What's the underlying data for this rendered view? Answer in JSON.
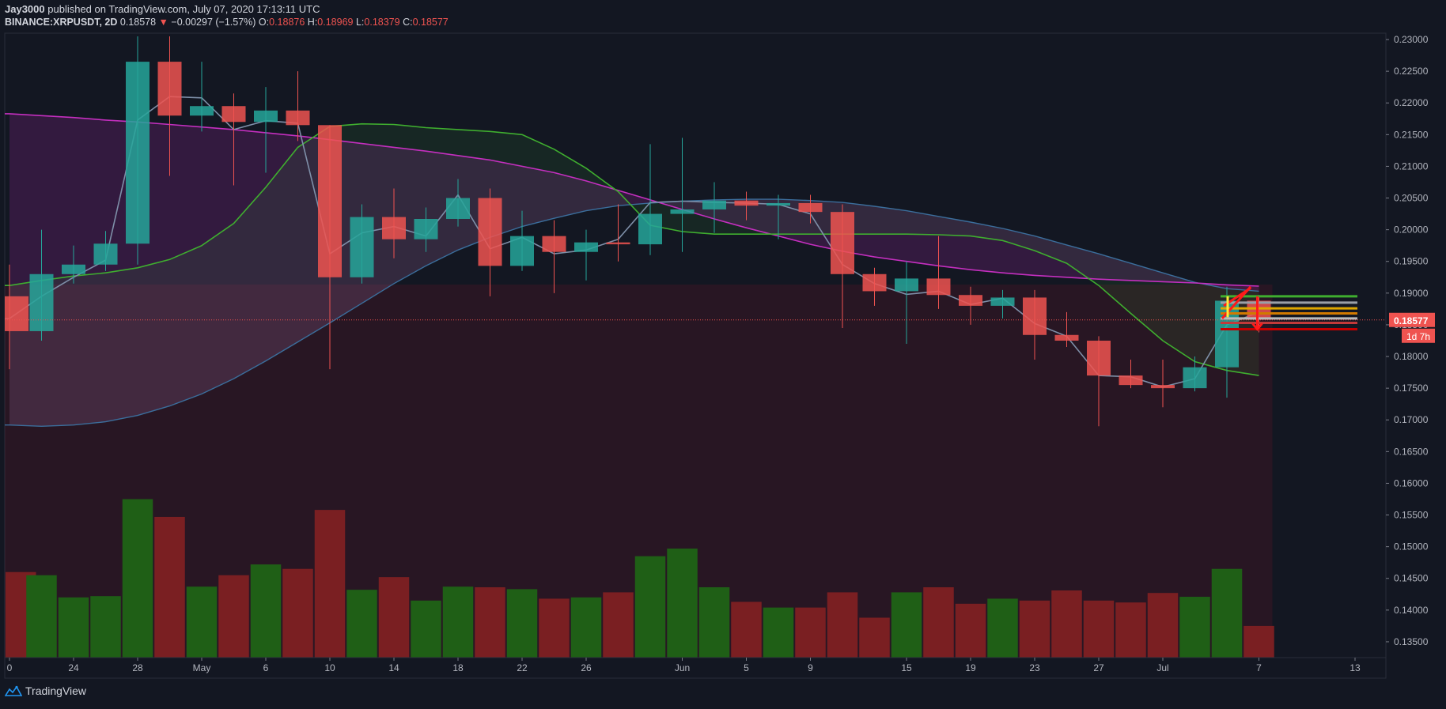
{
  "header": {
    "author": "Jay3000",
    "published": "published on TradingView.com, July 07, 2020 17:13:11 UTC",
    "symbol": "BINANCE:XRPUSDT, 2D",
    "last": "0.18578",
    "arrow": "▼",
    "change": "−0.00297 (−1.57%)",
    "o_label": "O:",
    "o_value": "0.18876",
    "h_label": "H:",
    "h_value": "0.18969",
    "l_label": "L:",
    "l_value": "0.18379",
    "c_label": "C:",
    "c_value": "0.18577"
  },
  "footer": {
    "brand": "TradingView"
  },
  "colors": {
    "background": "#131722",
    "up": "#26a69a",
    "down": "#ef5350",
    "vol_up": "#1f5f16",
    "vol_down": "#7a1f22",
    "ma_fast": "#7e8fa8",
    "ma_mid": "#3fae2f",
    "ma_slow": "#c42fbf",
    "ma_long": "#3b6e9c"
  },
  "chart_data": {
    "type": "candlestick",
    "price_label": "0.18577",
    "countdown": "1d 7h",
    "y_ticks": [
      "0.23000",
      "0.22500",
      "0.22000",
      "0.21500",
      "0.21000",
      "0.20500",
      "0.20000",
      "0.19500",
      "0.19000",
      "0.18500",
      "0.18000",
      "0.17500",
      "0.17000",
      "0.16500",
      "0.16000",
      "0.15500",
      "0.15000",
      "0.14500",
      "0.14000",
      "0.13500"
    ],
    "y_tick_values": [
      0.23,
      0.225,
      0.22,
      0.215,
      0.21,
      0.205,
      0.2,
      0.195,
      0.19,
      0.185,
      0.18,
      0.175,
      0.17,
      0.165,
      0.16,
      0.155,
      0.15,
      0.145,
      0.14,
      0.135
    ],
    "ylim": [
      0.1325,
      0.231
    ],
    "x_ticks": [
      {
        "label": "0",
        "i": 0
      },
      {
        "label": "24",
        "i": 2
      },
      {
        "label": "28",
        "i": 4
      },
      {
        "label": "May",
        "i": 6
      },
      {
        "label": "6",
        "i": 8
      },
      {
        "label": "10",
        "i": 10
      },
      {
        "label": "14",
        "i": 12
      },
      {
        "label": "18",
        "i": 14
      },
      {
        "label": "22",
        "i": 16
      },
      {
        "label": "26",
        "i": 18
      },
      {
        "label": "Jun",
        "i": 21
      },
      {
        "label": "5",
        "i": 23
      },
      {
        "label": "9",
        "i": 25
      },
      {
        "label": "15",
        "i": 28
      },
      {
        "label": "19",
        "i": 30
      },
      {
        "label": "23",
        "i": 32
      },
      {
        "label": "27",
        "i": 34
      },
      {
        "label": "Jul",
        "i": 36
      },
      {
        "label": "7",
        "i": 39
      },
      {
        "label": "13",
        "i": 42
      }
    ],
    "candles": [
      {
        "o": 0.1895,
        "h": 0.1945,
        "l": 0.178,
        "c": 0.184
      },
      {
        "o": 0.184,
        "h": 0.2,
        "l": 0.1825,
        "c": 0.193
      },
      {
        "o": 0.193,
        "h": 0.1975,
        "l": 0.1915,
        "c": 0.1945
      },
      {
        "o": 0.1945,
        "h": 0.1998,
        "l": 0.1935,
        "c": 0.1978
      },
      {
        "o": 0.1978,
        "h": 0.2305,
        "l": 0.1945,
        "c": 0.2265
      },
      {
        "o": 0.2265,
        "h": 0.2305,
        "l": 0.2085,
        "c": 0.218
      },
      {
        "o": 0.218,
        "h": 0.2265,
        "l": 0.2155,
        "c": 0.2195
      },
      {
        "o": 0.2195,
        "h": 0.2215,
        "l": 0.207,
        "c": 0.217
      },
      {
        "o": 0.217,
        "h": 0.2225,
        "l": 0.209,
        "c": 0.2188
      },
      {
        "o": 0.2188,
        "h": 0.225,
        "l": 0.214,
        "c": 0.2165
      },
      {
        "o": 0.2165,
        "h": 0.2165,
        "l": 0.178,
        "c": 0.1925
      },
      {
        "o": 0.1925,
        "h": 0.204,
        "l": 0.1915,
        "c": 0.202
      },
      {
        "o": 0.202,
        "h": 0.2065,
        "l": 0.1955,
        "c": 0.1985
      },
      {
        "o": 0.1985,
        "h": 0.2035,
        "l": 0.1965,
        "c": 0.2017
      },
      {
        "o": 0.2017,
        "h": 0.208,
        "l": 0.2005,
        "c": 0.205
      },
      {
        "o": 0.205,
        "h": 0.2065,
        "l": 0.1895,
        "c": 0.1943
      },
      {
        "o": 0.1943,
        "h": 0.203,
        "l": 0.1935,
        "c": 0.199
      },
      {
        "o": 0.199,
        "h": 0.2015,
        "l": 0.19,
        "c": 0.1965
      },
      {
        "o": 0.1965,
        "h": 0.2,
        "l": 0.192,
        "c": 0.198
      },
      {
        "o": 0.198,
        "h": 0.204,
        "l": 0.195,
        "c": 0.1977
      },
      {
        "o": 0.1977,
        "h": 0.2135,
        "l": 0.196,
        "c": 0.2025
      },
      {
        "o": 0.2025,
        "h": 0.2145,
        "l": 0.1965,
        "c": 0.2032
      },
      {
        "o": 0.2032,
        "h": 0.2075,
        "l": 0.1995,
        "c": 0.2046
      },
      {
        "o": 0.2046,
        "h": 0.206,
        "l": 0.2015,
        "c": 0.2038
      },
      {
        "o": 0.2038,
        "h": 0.2055,
        "l": 0.1985,
        "c": 0.2042
      },
      {
        "o": 0.2042,
        "h": 0.2055,
        "l": 0.201,
        "c": 0.2028
      },
      {
        "o": 0.2028,
        "h": 0.204,
        "l": 0.1845,
        "c": 0.193
      },
      {
        "o": 0.193,
        "h": 0.194,
        "l": 0.188,
        "c": 0.1903
      },
      {
        "o": 0.1903,
        "h": 0.195,
        "l": 0.182,
        "c": 0.1923
      },
      {
        "o": 0.1923,
        "h": 0.199,
        "l": 0.1875,
        "c": 0.1897
      },
      {
        "o": 0.1897,
        "h": 0.191,
        "l": 0.185,
        "c": 0.188
      },
      {
        "o": 0.188,
        "h": 0.1905,
        "l": 0.186,
        "c": 0.1893
      },
      {
        "o": 0.1893,
        "h": 0.1905,
        "l": 0.1795,
        "c": 0.1834
      },
      {
        "o": 0.1834,
        "h": 0.187,
        "l": 0.1815,
        "c": 0.1825
      },
      {
        "o": 0.1825,
        "h": 0.1832,
        "l": 0.169,
        "c": 0.177
      },
      {
        "o": 0.177,
        "h": 0.1795,
        "l": 0.175,
        "c": 0.1755
      },
      {
        "o": 0.1755,
        "h": 0.1795,
        "l": 0.172,
        "c": 0.175
      },
      {
        "o": 0.175,
        "h": 0.18,
        "l": 0.1745,
        "c": 0.1783
      },
      {
        "o": 0.1783,
        "h": 0.191,
        "l": 0.1735,
        "c": 0.1888
      },
      {
        "o": 0.1888,
        "h": 0.1897,
        "l": 0.1838,
        "c": 0.1858
      }
    ],
    "volumes": [
      0.146,
      0.1455,
      0.142,
      0.1422,
      0.1575,
      0.1547,
      0.1437,
      0.1455,
      0.1472,
      0.1465,
      0.1558,
      0.1432,
      0.1452,
      0.1415,
      0.1437,
      0.1436,
      0.1433,
      0.1418,
      0.142,
      0.1428,
      0.1485,
      0.1497,
      0.1436,
      0.1413,
      0.1404,
      0.1404,
      0.1428,
      0.1388,
      0.1428,
      0.1436,
      0.141,
      0.1418,
      0.1415,
      0.1431,
      0.1415,
      0.1412,
      0.1427,
      0.1421,
      0.1465,
      0.1375
    ],
    "ma_fast": [
      0.186,
      0.1895,
      0.1925,
      0.1952,
      0.2173,
      0.221,
      0.2208,
      0.2158,
      0.2172,
      0.2168,
      0.1962,
      0.1995,
      0.2005,
      0.199,
      0.2055,
      0.197,
      0.1988,
      0.1962,
      0.1968,
      0.1985,
      0.2043,
      0.2045,
      0.2043,
      0.2042,
      0.204,
      0.2025,
      0.1945,
      0.1915,
      0.1898,
      0.1903,
      0.1882,
      0.1892,
      0.1852,
      0.1832,
      0.177,
      0.1768,
      0.1752,
      0.1765,
      0.185,
      0.187
    ],
    "ma_mid": [
      0.1912,
      0.192,
      0.1927,
      0.1932,
      0.194,
      0.1953,
      0.1975,
      0.201,
      0.2067,
      0.213,
      0.2163,
      0.2167,
      0.2166,
      0.2161,
      0.2158,
      0.2155,
      0.215,
      0.2127,
      0.2097,
      0.206,
      0.2007,
      0.1997,
      0.1993,
      0.1993,
      0.1993,
      0.1993,
      0.1993,
      0.1993,
      0.1993,
      0.1992,
      0.199,
      0.1983,
      0.1967,
      0.1947,
      0.1912,
      0.1868,
      0.1825,
      0.1792,
      0.1778,
      0.177
    ],
    "ma_slow": [
      0.2183,
      0.218,
      0.2177,
      0.2173,
      0.217,
      0.2166,
      0.2162,
      0.2158,
      0.2153,
      0.2148,
      0.2142,
      0.2136,
      0.213,
      0.2124,
      0.2117,
      0.211,
      0.21,
      0.209,
      0.2077,
      0.2062,
      0.2047,
      0.2032,
      0.2017,
      0.2003,
      0.199,
      0.1977,
      0.1966,
      0.1957,
      0.195,
      0.1943,
      0.1937,
      0.1932,
      0.1928,
      0.1925,
      0.1922,
      0.192,
      0.1918,
      0.1916,
      0.1913,
      0.1911
    ],
    "ma_long": [
      0.1692,
      0.169,
      0.1692,
      0.1697,
      0.1707,
      0.1722,
      0.1741,
      0.1765,
      0.1793,
      0.1823,
      0.1853,
      0.1884,
      0.1915,
      0.1943,
      0.1968,
      0.1988,
      0.2005,
      0.2018,
      0.203,
      0.2038,
      0.2042,
      0.2045,
      0.2047,
      0.2048,
      0.2048,
      0.2046,
      0.2043,
      0.2037,
      0.203,
      0.2021,
      0.2012,
      0.2002,
      0.199,
      0.1976,
      0.1962,
      0.1947,
      0.1932,
      0.1917,
      0.1907,
      0.1903
    ],
    "fib_levels": [
      {
        "v": 0.1895,
        "color": "#3fae2f"
      },
      {
        "v": 0.1885,
        "color": "#9aa0a8"
      },
      {
        "v": 0.1876,
        "color": "#e0a800"
      },
      {
        "v": 0.1868,
        "color": "#d17a00"
      },
      {
        "v": 0.186,
        "color": "#bbbbbb"
      },
      {
        "v": 0.1853,
        "color": "#c23a3a"
      },
      {
        "v": 0.1843,
        "color": "#c40000"
      }
    ]
  }
}
